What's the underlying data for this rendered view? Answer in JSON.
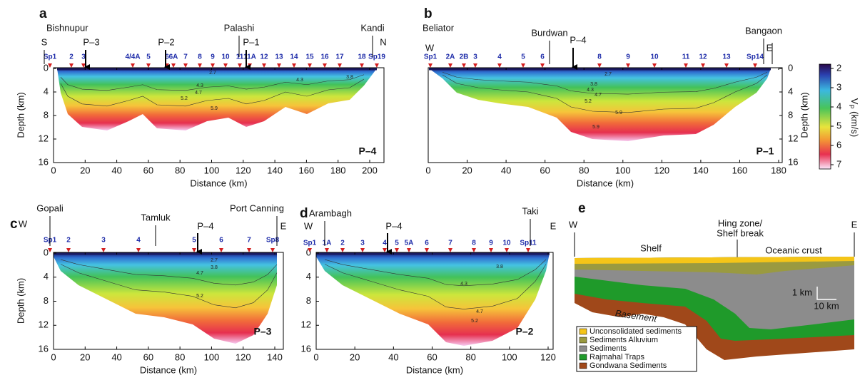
{
  "panels": [
    {
      "letter": "a",
      "places": [
        "Bishnupur",
        "S",
        "P–3",
        "P–2",
        "Palashi",
        "P–1",
        "Kandi",
        "N"
      ],
      "stations": [
        "Sp1",
        "2",
        "3",
        "4/4A",
        "5",
        "6",
        "6A",
        "7",
        "8",
        "9",
        "10",
        "11",
        "11A",
        "12",
        "13",
        "14",
        "15",
        "16",
        "17",
        "18",
        "Sp19"
      ],
      "contours": [
        "2.7",
        "3.8",
        "4.3",
        "4.3",
        "4.7",
        "5.2",
        "5.9"
      ],
      "profile": "P–4",
      "xlabel": "Distance (km)",
      "ylabel": "Depth (km)",
      "xticks": [
        0,
        20,
        40,
        60,
        80,
        100,
        120,
        140,
        160,
        180,
        200
      ],
      "yticks": [
        0,
        4,
        8,
        12,
        16
      ]
    },
    {
      "letter": "b",
      "places": [
        "Beliator",
        "W",
        "Burdwan",
        "P–4",
        "Bangaon",
        "E"
      ],
      "stations": [
        "Sp1",
        "2A",
        "2B",
        "3",
        "4",
        "5",
        "6",
        "8",
        "9",
        "10",
        "11",
        "12",
        "13",
        "Sp14"
      ],
      "contours": [
        "2.7",
        "3.8",
        "4.3",
        "4.7",
        "5.2",
        "5.9",
        "5.9"
      ],
      "profile": "P–1",
      "xlabel": "Distance (km)",
      "ylabel": "Depth (km)",
      "xticks": [
        0,
        20,
        40,
        60,
        80,
        100,
        120,
        140,
        160,
        180
      ],
      "yticks": [
        0,
        4,
        8,
        12,
        16
      ]
    },
    {
      "letter": "c",
      "places": [
        "W",
        "Gopali",
        "Tamluk",
        "P–4",
        "Port Canning",
        "E"
      ],
      "stations": [
        "Sp1",
        "2",
        "3",
        "4",
        "5",
        "6",
        "7",
        "Sp8"
      ],
      "contours": [
        "2.7",
        "3.8",
        "4.7",
        "5.2"
      ],
      "profile": "P–3",
      "xlabel": "Distance (km)",
      "ylabel": "Depth (km)",
      "xticks": [
        0,
        20,
        40,
        60,
        80,
        100,
        120,
        140
      ],
      "yticks": [
        0,
        4,
        8,
        12,
        16
      ]
    },
    {
      "letter": "d",
      "places": [
        "Arambagh",
        "W",
        "P–4",
        "Taki",
        "E"
      ],
      "stations": [
        "Sp1",
        "1A",
        "2",
        "3",
        "4",
        "5",
        "5A",
        "6",
        "7",
        "8",
        "9",
        "10",
        "Sp11"
      ],
      "contours": [
        "3.8",
        "4.3",
        "4.7",
        "5.2"
      ],
      "profile": "P–2",
      "xlabel": "Distance (km)",
      "xticks": [
        0,
        20,
        40,
        60,
        80,
        100,
        120
      ],
      "yticks": [
        0,
        4,
        8,
        12,
        16
      ]
    }
  ],
  "colorbar": {
    "symbol": "V",
    "subscript": "P",
    "unit": " (km/s)",
    "ticks": [
      2,
      3,
      4,
      5,
      6,
      7
    ]
  },
  "schematic": {
    "letter": "e",
    "west": "W",
    "east": "E",
    "hinge_1": "Hing zone/",
    "hinge_2": "Shelf break",
    "shelf": "Shelf",
    "oceanic": "Oceanic crust",
    "basement": "Basement",
    "scale_v": "1 km",
    "scale_h": "10 km",
    "legend": [
      "Unconsolidated sediments",
      "Sediments Alluvium",
      "Sediments",
      "Rajmahal Traps",
      "Gondwana Sediments"
    ]
  }
}
